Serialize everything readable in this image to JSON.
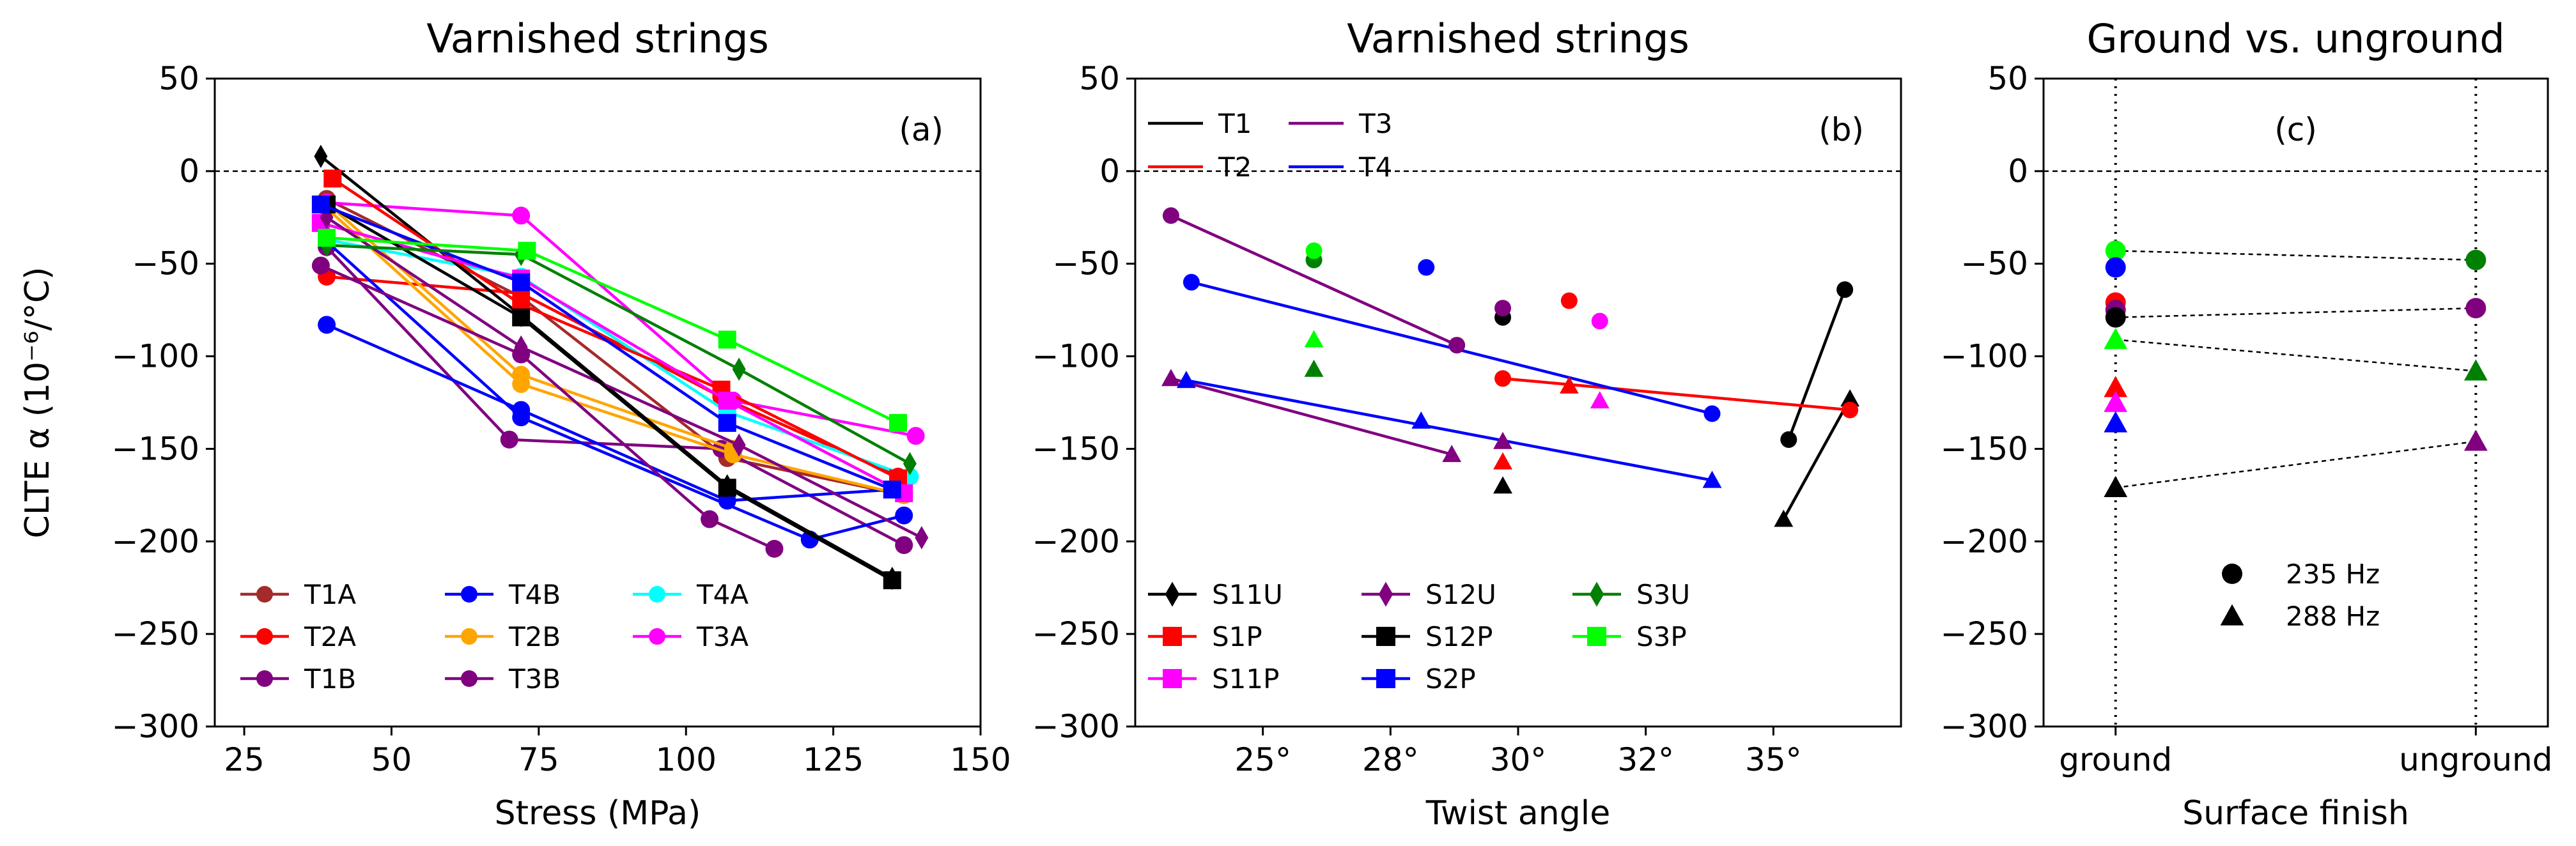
{
  "chart_data": [
    {
      "type": "line",
      "title": "Varnished strings",
      "panel_label": "(a)",
      "xlabel": "Stress (MPa)",
      "ylabel": "CLTE α (10⁻⁶/°C)",
      "xlim": [
        20,
        150
      ],
      "ylim": [
        -300,
        50
      ],
      "xticks": [
        25,
        50,
        75,
        100,
        125,
        150
      ],
      "xtick_labels": [
        "25",
        "50",
        "75",
        "100",
        "125",
        "150"
      ],
      "yticks": [
        50,
        0,
        -50,
        -100,
        -150,
        -200,
        -250,
        -300
      ],
      "ytick_labels": [
        "50",
        "0",
        "−50",
        "−100",
        "−150",
        "−200",
        "−250",
        "−300"
      ],
      "reference_line": 0,
      "legend_position": "lower-left",
      "legend": [
        {
          "label": "T1A",
          "color": "#a52a2a"
        },
        {
          "label": "T2A",
          "color": "#ff0000"
        },
        {
          "label": "T1B",
          "color": "#800080"
        },
        {
          "label": "T4B",
          "color": "#0000ff"
        },
        {
          "label": "T2B",
          "color": "#ffa500"
        },
        {
          "label": "T3B",
          "color": "#800080"
        },
        {
          "label": "T4A",
          "color": "#00ffff"
        },
        {
          "label": "T3A",
          "color": "#ff00ff"
        }
      ],
      "series": [
        {
          "name": "T1A",
          "color": "#a52a2a",
          "marker": "circle",
          "x": [
            39,
            72,
            107,
            137
          ],
          "y": [
            -15,
            -68,
            -155,
            -175
          ]
        },
        {
          "name": "T2A",
          "color": "#ff0000",
          "marker": "circle",
          "x": [
            39,
            72,
            106,
            136
          ],
          "y": [
            -57,
            -66,
            -122,
            -165
          ]
        },
        {
          "name": "T1B",
          "color": "#800080",
          "marker": "circle",
          "x": [
            39,
            70,
            106,
            137
          ],
          "y": [
            -41,
            -145,
            -150,
            -202
          ]
        },
        {
          "name": "T4B",
          "color": "#0000ff",
          "marker": "circle",
          "x": [
            39,
            72,
            107,
            135
          ],
          "y": [
            -83,
            -129,
            -178,
            -172
          ]
        },
        {
          "name": "T4B",
          "color": "#0000ff",
          "marker": "circle",
          "x": [
            39,
            72,
            121,
            137
          ],
          "y": [
            -38,
            -133,
            -199,
            -186
          ]
        },
        {
          "name": "T2B",
          "color": "#ffa500",
          "marker": "circle",
          "x": [
            39,
            72,
            108,
            137
          ],
          "y": [
            -20,
            -115,
            -153,
            -175
          ]
        },
        {
          "name": "T2B",
          "color": "#ffa500",
          "marker": "circle",
          "x": [
            39,
            72,
            108
          ],
          "y": [
            -17,
            -110,
            -150
          ]
        },
        {
          "name": "T3B",
          "color": "#800080",
          "marker": "circle",
          "x": [
            38,
            72,
            104,
            115
          ],
          "y": [
            -51,
            -99,
            -188,
            -204
          ]
        },
        {
          "name": "T4A",
          "color": "#00ffff",
          "marker": "circle",
          "x": [
            39,
            72,
            107,
            138
          ],
          "y": [
            -37,
            -57,
            -130,
            -165
          ]
        },
        {
          "name": "T3A",
          "color": "#ff00ff",
          "marker": "circle",
          "x": [
            39,
            72,
            108,
            139
          ],
          "y": [
            -17,
            -24,
            -124,
            -143
          ]
        },
        {
          "name": "S11U",
          "color": "#000000",
          "marker": "diamond",
          "x": [
            38,
            72,
            107,
            135
          ],
          "y": [
            8,
            -78,
            -170,
            -220
          ]
        },
        {
          "name": "S1P",
          "color": "#ff0000",
          "marker": "square",
          "x": [
            40,
            72,
            106,
            136
          ],
          "y": [
            -4,
            -72,
            -118,
            -166
          ]
        },
        {
          "name": "S11P",
          "color": "#ff00ff",
          "marker": "square",
          "x": [
            38,
            72,
            107,
            137
          ],
          "y": [
            -28,
            -58,
            -124,
            -174
          ]
        },
        {
          "name": "S12U",
          "color": "#800080",
          "marker": "diamond",
          "x": [
            39,
            72,
            109,
            140
          ],
          "y": [
            -25,
            -95,
            -148,
            -198
          ]
        },
        {
          "name": "S12P",
          "color": "#000000",
          "marker": "square",
          "x": [
            39,
            72,
            107,
            135
          ],
          "y": [
            -18,
            -79,
            -171,
            -221
          ]
        },
        {
          "name": "S2P",
          "color": "#0000ff",
          "marker": "square",
          "x": [
            38,
            72,
            107,
            135
          ],
          "y": [
            -18,
            -60,
            -136,
            -172
          ]
        },
        {
          "name": "S3U",
          "color": "#008000",
          "marker": "diamond",
          "x": [
            39,
            72,
            109,
            138
          ],
          "y": [
            -40,
            -45,
            -107,
            -158
          ]
        },
        {
          "name": "S3P",
          "color": "#00ff00",
          "marker": "square",
          "x": [
            39,
            73,
            107,
            136
          ],
          "y": [
            -36,
            -43,
            -91,
            -136
          ]
        }
      ]
    },
    {
      "type": "scatter",
      "title": "Varnished strings",
      "panel_label": "(b)",
      "xlabel": "Twist angle",
      "ylabel": "",
      "xlim": [
        22.5,
        37.5
      ],
      "ylim": [
        -300,
        50
      ],
      "xticks": [
        25,
        27.5,
        30,
        32.5,
        35
      ],
      "xtick_labels": [
        "25°",
        "28°",
        "30°",
        "32°",
        "35°"
      ],
      "yticks": [
        50,
        0,
        -50,
        -100,
        -150,
        -200,
        -250,
        -300
      ],
      "ytick_labels": [
        "50",
        "0",
        "−50",
        "−100",
        "−150",
        "−200",
        "−250",
        "−300"
      ],
      "reference_line": 0,
      "legend_top": [
        {
          "label": "T1",
          "color": "#000000"
        },
        {
          "label": "T2",
          "color": "#ff0000"
        },
        {
          "label": "T3",
          "color": "#800080"
        },
        {
          "label": "T4",
          "color": "#0000ff"
        }
      ],
      "legend_bottom": [
        {
          "label": "S11U",
          "color": "#000000",
          "marker": "diamond"
        },
        {
          "label": "S1P",
          "color": "#ff0000",
          "marker": "square"
        },
        {
          "label": "S11P",
          "color": "#ff00ff",
          "marker": "square"
        },
        {
          "label": "S12U",
          "color": "#800080",
          "marker": "diamond"
        },
        {
          "label": "S12P",
          "color": "#000000",
          "marker": "square"
        },
        {
          "label": "S2P",
          "color": "#0000ff",
          "marker": "square"
        },
        {
          "label": "S3U",
          "color": "#008000",
          "marker": "diamond"
        },
        {
          "label": "S3P",
          "color": "#00ff00",
          "marker": "square"
        }
      ],
      "fit_lines": [
        {
          "name": "T1",
          "color": "#000000",
          "x": [
            35.3,
            36.4
          ],
          "y": [
            -145,
            -64
          ]
        },
        {
          "name": "T1",
          "color": "#000000",
          "x": [
            35.2,
            36.5
          ],
          "y": [
            -188,
            -123
          ]
        },
        {
          "name": "T2",
          "color": "#ff0000",
          "x": [
            29.7,
            36.5
          ],
          "y": [
            -112,
            -129
          ]
        },
        {
          "name": "T3",
          "color": "#800080",
          "x": [
            23.2,
            28.8
          ],
          "y": [
            -24,
            -94
          ]
        },
        {
          "name": "T3",
          "color": "#800080",
          "x": [
            23.2,
            28.7
          ],
          "y": [
            -112,
            -153
          ]
        },
        {
          "name": "T4",
          "color": "#0000ff",
          "x": [
            23.6,
            33.8
          ],
          "y": [
            -60,
            -131
          ]
        },
        {
          "name": "T4",
          "color": "#0000ff",
          "x": [
            23.5,
            33.8
          ],
          "y": [
            -113,
            -167
          ]
        }
      ],
      "points": [
        {
          "color": "#000000",
          "marker": "circle",
          "x": 29.7,
          "y": -79
        },
        {
          "color": "#000000",
          "marker": "circle",
          "x": 35.3,
          "y": -145
        },
        {
          "color": "#000000",
          "marker": "circle",
          "x": 36.4,
          "y": -64
        },
        {
          "color": "#000000",
          "marker": "triangle",
          "x": 29.7,
          "y": -170
        },
        {
          "color": "#000000",
          "marker": "triangle",
          "x": 35.2,
          "y": -188
        },
        {
          "color": "#000000",
          "marker": "triangle",
          "x": 36.5,
          "y": -123
        },
        {
          "color": "#ff0000",
          "marker": "circle",
          "x": 31.0,
          "y": -70
        },
        {
          "color": "#ff0000",
          "marker": "circle",
          "x": 29.7,
          "y": -112
        },
        {
          "color": "#ff0000",
          "marker": "circle",
          "x": 36.5,
          "y": -129
        },
        {
          "color": "#ff0000",
          "marker": "triangle",
          "x": 31.0,
          "y": -116
        },
        {
          "color": "#ff0000",
          "marker": "triangle",
          "x": 29.7,
          "y": -157
        },
        {
          "color": "#ff00ff",
          "marker": "circle",
          "x": 31.6,
          "y": -81
        },
        {
          "color": "#ff00ff",
          "marker": "triangle",
          "x": 31.6,
          "y": -124
        },
        {
          "color": "#800080",
          "marker": "circle",
          "x": 23.2,
          "y": -24
        },
        {
          "color": "#800080",
          "marker": "circle",
          "x": 29.7,
          "y": -74
        },
        {
          "color": "#800080",
          "marker": "circle",
          "x": 28.8,
          "y": -94
        },
        {
          "color": "#800080",
          "marker": "triangle",
          "x": 23.2,
          "y": -112
        },
        {
          "color": "#800080",
          "marker": "triangle",
          "x": 28.7,
          "y": -153
        },
        {
          "color": "#800080",
          "marker": "triangle",
          "x": 29.7,
          "y": -146
        },
        {
          "color": "#0000ff",
          "marker": "circle",
          "x": 23.6,
          "y": -60
        },
        {
          "color": "#0000ff",
          "marker": "circle",
          "x": 28.2,
          "y": -52
        },
        {
          "color": "#0000ff",
          "marker": "circle",
          "x": 33.8,
          "y": -131
        },
        {
          "color": "#0000ff",
          "marker": "triangle",
          "x": 23.5,
          "y": -113
        },
        {
          "color": "#0000ff",
          "marker": "triangle",
          "x": 28.1,
          "y": -135
        },
        {
          "color": "#0000ff",
          "marker": "triangle",
          "x": 33.8,
          "y": -167
        },
        {
          "color": "#008000",
          "marker": "circle",
          "x": 26.0,
          "y": -48
        },
        {
          "color": "#008000",
          "marker": "triangle",
          "x": 26.0,
          "y": -107
        },
        {
          "color": "#00ff00",
          "marker": "circle",
          "x": 26.0,
          "y": -43
        },
        {
          "color": "#00ff00",
          "marker": "triangle",
          "x": 26.0,
          "y": -91
        }
      ]
    },
    {
      "type": "scatter",
      "title": "Ground vs. unground",
      "panel_label": "(c)",
      "xlabel": "Surface finish",
      "ylabel": "",
      "categories": [
        "ground",
        "unground"
      ],
      "xlim": [
        -0.2,
        1.2
      ],
      "ylim": [
        -300,
        50
      ],
      "yticks": [
        50,
        0,
        -50,
        -100,
        -150,
        -200,
        -250,
        -300
      ],
      "ytick_labels": [
        "50",
        "0",
        "−50",
        "−100",
        "−150",
        "−200",
        "−250",
        "−300"
      ],
      "reference_line": 0,
      "legend": [
        {
          "label": "235 Hz",
          "marker": "circle"
        },
        {
          "label": "288 Hz",
          "marker": "triangle"
        }
      ],
      "connectors": [
        {
          "y": [
            -43,
            -48
          ]
        },
        {
          "y": [
            -79,
            -74
          ]
        },
        {
          "y": [
            -91,
            -108
          ]
        },
        {
          "y": [
            -171,
            -146
          ]
        }
      ],
      "points": [
        {
          "category": 0,
          "color": "#00ff00",
          "marker": "circle",
          "y": -43
        },
        {
          "category": 0,
          "color": "#0000ff",
          "marker": "circle",
          "y": -52
        },
        {
          "category": 0,
          "color": "#ff0000",
          "marker": "circle",
          "y": -71
        },
        {
          "category": 0,
          "color": "#800080",
          "marker": "circle",
          "y": -75
        },
        {
          "category": 0,
          "color": "#000000",
          "marker": "circle",
          "y": -79
        },
        {
          "category": 0,
          "color": "#00ff00",
          "marker": "triangle",
          "y": -91
        },
        {
          "category": 0,
          "color": "#ff0000",
          "marker": "triangle",
          "y": -117
        },
        {
          "category": 0,
          "color": "#ff00ff",
          "marker": "triangle",
          "y": -125
        },
        {
          "category": 0,
          "color": "#0000ff",
          "marker": "triangle",
          "y": -136
        },
        {
          "category": 0,
          "color": "#000000",
          "marker": "triangle",
          "y": -171
        },
        {
          "category": 1,
          "color": "#008000",
          "marker": "circle",
          "y": -48
        },
        {
          "category": 1,
          "color": "#800080",
          "marker": "circle",
          "y": -74
        },
        {
          "category": 1,
          "color": "#008000",
          "marker": "triangle",
          "y": -108
        },
        {
          "category": 1,
          "color": "#800080",
          "marker": "triangle",
          "y": -146
        }
      ]
    }
  ]
}
